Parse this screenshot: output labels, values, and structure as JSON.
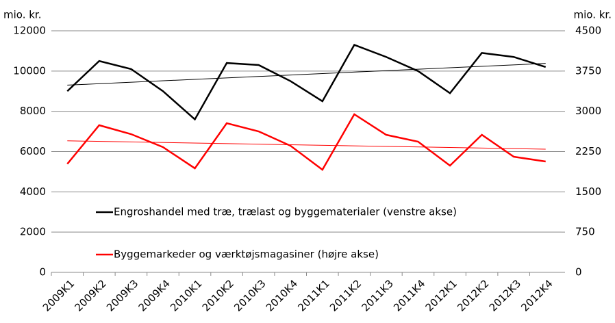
{
  "chart_data": {
    "type": "line",
    "y_label": "mio. kr.",
    "y2_label": "mio. kr.",
    "categories": [
      "2009K1",
      "2009K2",
      "2009K3",
      "2009K4",
      "2010K1",
      "2010K2",
      "2010K3",
      "2010K4",
      "2011K1",
      "2011K2",
      "2011K3",
      "2011K4",
      "2012K1",
      "2012K2",
      "2012K3",
      "2012K4"
    ],
    "series": [
      {
        "name": "Engroshandel med træ, trælast og byggematerialer (venstre akse)",
        "color": "#000000",
        "axis": "y",
        "values": [
          9000,
          10500,
          10100,
          9000,
          7600,
          10400,
          10300,
          9500,
          8500,
          11300,
          10700,
          10000,
          8900,
          10900,
          10700,
          10200
        ],
        "trend": [
          9300,
          10380
        ]
      },
      {
        "name": "Byggemarkeder og værktøjsmagasiner (højre akse)",
        "color": "#ff0000",
        "axis": "y2",
        "values": [
          2020,
          2741,
          2575,
          2333,
          1938,
          2779,
          2626,
          2358,
          1912,
          2945,
          2562,
          2435,
          1989,
          2562,
          2154,
          2065
        ],
        "trend": [
          2450,
          2295
        ]
      }
    ],
    "ylim": [
      0,
      12000
    ],
    "yticks": [
      0,
      2000,
      4000,
      6000,
      8000,
      10000,
      12000
    ],
    "y2lim": [
      0,
      4500
    ],
    "y2ticks": [
      0,
      750,
      1500,
      2250,
      3000,
      3750,
      4500
    ],
    "grid": true
  }
}
